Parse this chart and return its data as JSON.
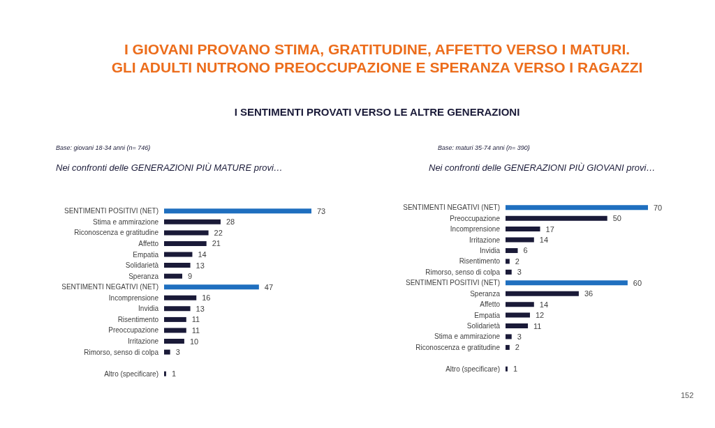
{
  "chart_data": [
    {
      "type": "bar",
      "orientation": "horizontal",
      "title": "Nei confronti delle GENERAZIONI PIÙ MATURE provi…",
      "subtitle": "Base: giovani 18-34 anni (n= 746)",
      "annotations": [
        "I GIOVANI PROVANO STIMA, GRATITUDINE, AFFETTO VERSO I MATURI.\nGLI ADULTI NUTRONO PREOCCUPAZIONE E SPERANZA VERSO I RAGAZZI",
        "I SENTIMENTI PROVATI VERSO LE ALTRE GENERAZIONI",
        "152"
      ],
      "categories": [
        "SENTIMENTI POSITIVI (NET)",
        "Stima e ammirazione",
        "Riconoscenza e gratitudine",
        "Affetto",
        "Empatia",
        "Solidarietà",
        "Speranza",
        "SENTIMENTI NEGATIVI (NET)",
        "Incomprensione",
        "Invidia",
        "Risentimento",
        "Preoccupazione",
        "Irritazione",
        "Rimorso, senso di colpa",
        null,
        "Altro (specificare)"
      ],
      "values": [
        73,
        28,
        22,
        21,
        14,
        13,
        9,
        47,
        16,
        13,
        11,
        11,
        10,
        3,
        null,
        1
      ],
      "colors": [
        "#1f6fbf",
        "#1a1a38",
        "#1a1a38",
        "#1a1a38",
        "#1a1a38",
        "#1a1a38",
        "#1a1a38",
        "#1f6fbf",
        "#1a1a38",
        "#1a1a38",
        "#1a1a38",
        "#1a1a38",
        "#1a1a38",
        "#1a1a38",
        "#1a1a38",
        "#1a1a38"
      ],
      "data_labels": true
    },
    {
      "type": "bar",
      "orientation": "horizontal",
      "title": "Nei confronti delle GENERAZIONI PIÙ GIOVANI provi…",
      "subtitle": "Base: maturi 35-74 anni (n= 390)",
      "categories": [
        "SENTIMENTI NEGATIVI (NET)",
        "Preoccupazione",
        "Incomprensione",
        "Irritazione",
        "Invidia",
        "Risentimento",
        "Rimorso, senso di colpa",
        "SENTIMENTI POSITIVI (NET)",
        "Speranza",
        "Affetto",
        "Empatia",
        "Solidarietà",
        "Stima e ammirazione",
        "Riconoscenza e gratitudine",
        null,
        "Altro (specificare)"
      ],
      "values": [
        70,
        50,
        17,
        14,
        6,
        2,
        3,
        60,
        36,
        14,
        12,
        11,
        3,
        2,
        null,
        1
      ],
      "colors": [
        "#1f6fbf",
        "#1a1a38",
        "#1a1a38",
        "#1a1a38",
        "#1a1a38",
        "#1a1a38",
        "#1a1a38",
        "#1f6fbf",
        "#1a1a38",
        "#1a1a38",
        "#1a1a38",
        "#1a1a38",
        "#1a1a38",
        "#1a1a38",
        "#1a1a38",
        "#1a1a38"
      ],
      "data_labels": true
    }
  ]
}
